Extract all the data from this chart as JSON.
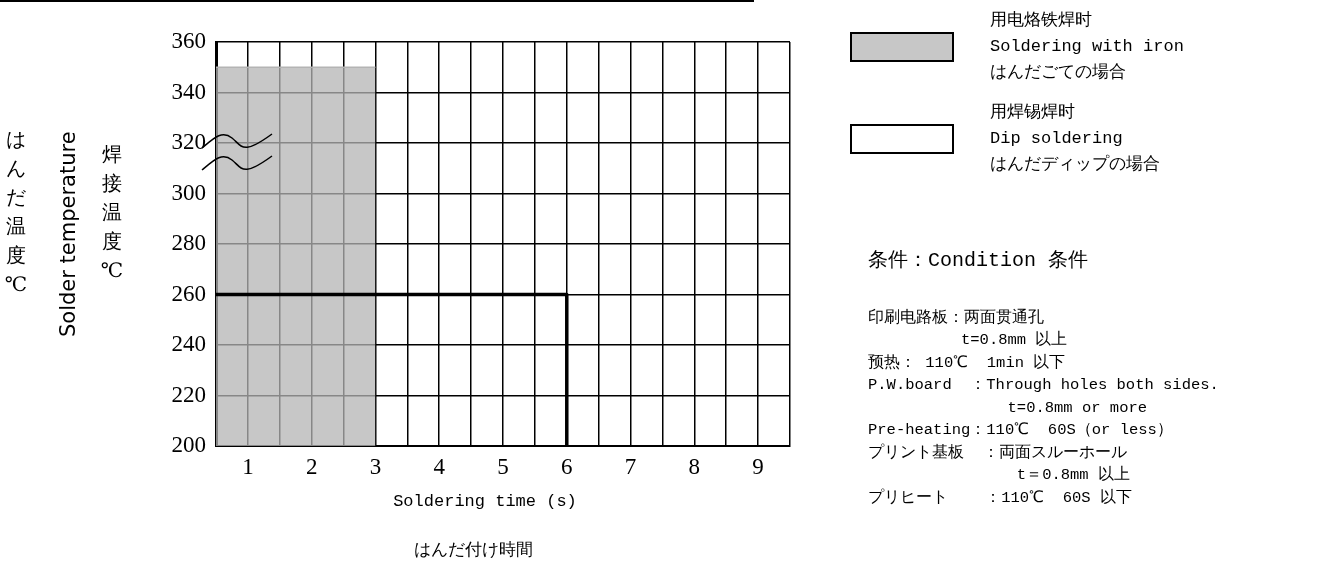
{
  "chart_data": {
    "type": "area",
    "xlabel": "Soldering time (s)\nはんだ付け時間",
    "ylabel": "はんだ温度℃\nSolder temperature\n焊接温度℃",
    "xlim": [
      0.5,
      9.5
    ],
    "xticks": [
      {
        "value": 0.5,
        "label": null
      },
      1,
      {
        "value": 1.5,
        "label": null
      },
      2,
      {
        "value": 2.5,
        "label": null
      },
      3,
      {
        "value": 3.5,
        "label": null
      },
      4,
      {
        "value": 4.5,
        "label": null
      },
      5,
      {
        "value": 5.5,
        "label": null
      },
      6,
      {
        "value": 6.5,
        "label": null
      },
      7,
      {
        "value": 7.5,
        "label": null
      },
      8,
      {
        "value": 8.5,
        "label": null
      },
      9,
      {
        "value": 9.5,
        "label": null
      }
    ],
    "ylim": [
      200,
      360
    ],
    "yticks": [
      200,
      220,
      240,
      260,
      280,
      300,
      320,
      340,
      360
    ],
    "grid": true,
    "legend": "right",
    "marker": "none",
    "series": [
      {
        "name": "用电烙铁焊时\nSoldering with iron\nはんだごての場合",
        "type": "area",
        "color": "#b4b4b4",
        "x": [
          0.5,
          3
        ],
        "values": [
          350,
          350
        ]
      },
      {
        "name": "用焊锡焊时\nDip soldering\nはんだディップの場合",
        "type": "line",
        "color": "#000000",
        "x": [
          0.5,
          6,
          6
        ],
        "values": [
          260,
          260,
          200
        ]
      }
    ],
    "annotations": [
      "条件：Condition 条件",
      "印刷电路板：两面贯通孔",
      "          t=0.8mm 以上",
      "预热： 110℃  1min 以下",
      "P.W.board  ：Through holes both sides.",
      "               t=0.8mm or more",
      "Pre-heating：110℃  60S（or less）",
      "プリント基板  ：両面スルーホール",
      "                t＝0.8mm 以上",
      "プリヒート    ：110℃  60S 以下"
    ]
  }
}
